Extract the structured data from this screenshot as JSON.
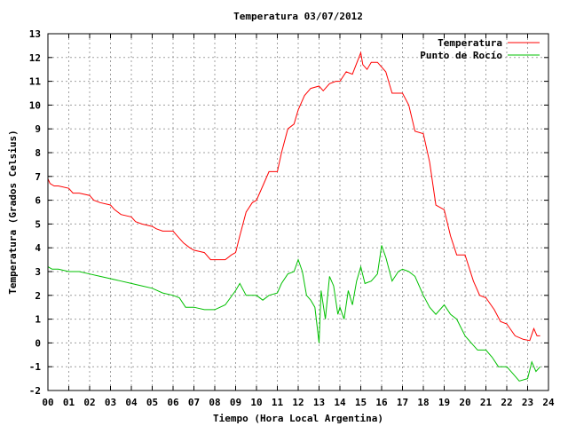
{
  "chart_data": {
    "type": "line",
    "title": "Temperatura 03/07/2012",
    "xlabel": "Tiempo (Hora Local Argentina)",
    "ylabel": "Temperatura (Grados Celsius)",
    "xlim": [
      0,
      24
    ],
    "ylim": [
      -2,
      13
    ],
    "xticks": [
      "00",
      "01",
      "02",
      "03",
      "04",
      "05",
      "06",
      "07",
      "08",
      "09",
      "10",
      "11",
      "12",
      "13",
      "14",
      "15",
      "16",
      "17",
      "18",
      "19",
      "20",
      "21",
      "22",
      "23",
      "24"
    ],
    "yticks": [
      -2,
      -1,
      0,
      1,
      2,
      3,
      4,
      5,
      6,
      7,
      8,
      9,
      10,
      11,
      12,
      13
    ],
    "grid": true,
    "legend_position": "top-right",
    "series": [
      {
        "name": "Temperatura",
        "color": "#ff0000",
        "x": [
          0,
          0.1,
          0.3,
          0.5,
          1.0,
          1.2,
          1.5,
          2.0,
          2.2,
          2.5,
          3.0,
          3.2,
          3.5,
          4.0,
          4.2,
          4.5,
          5.0,
          5.2,
          5.5,
          6.0,
          6.2,
          6.5,
          6.8,
          7.0,
          7.5,
          7.8,
          8.0,
          8.5,
          8.8,
          9.0,
          9.2,
          9.5,
          9.8,
          10.0,
          10.3,
          10.6,
          11.0,
          11.2,
          11.5,
          11.8,
          12.0,
          12.3,
          12.6,
          13.0,
          13.2,
          13.5,
          13.8,
          14.0,
          14.3,
          14.6,
          15.0,
          15.1,
          15.3,
          15.5,
          15.8,
          16.2,
          16.5,
          17.0,
          17.3,
          17.6,
          18.0,
          18.3,
          18.6,
          19.0,
          19.3,
          19.6,
          20.0,
          20.4,
          20.7,
          21.0,
          21.4,
          21.7,
          22.0,
          22.4,
          22.8,
          23.1,
          23.3,
          23.45,
          23.6
        ],
        "y": [
          6.9,
          6.7,
          6.6,
          6.6,
          6.5,
          6.3,
          6.3,
          6.2,
          6.0,
          5.9,
          5.8,
          5.6,
          5.4,
          5.3,
          5.1,
          5.0,
          4.9,
          4.8,
          4.7,
          4.7,
          4.5,
          4.2,
          4.0,
          3.9,
          3.8,
          3.5,
          3.5,
          3.5,
          3.7,
          3.8,
          4.5,
          5.5,
          5.9,
          6.0,
          6.6,
          7.2,
          7.2,
          8.0,
          9.0,
          9.2,
          9.8,
          10.4,
          10.7,
          10.8,
          10.6,
          10.9,
          11.0,
          11.0,
          11.4,
          11.3,
          12.2,
          11.7,
          11.5,
          11.8,
          11.8,
          11.4,
          10.5,
          10.5,
          10.0,
          8.9,
          8.8,
          7.6,
          5.8,
          5.6,
          4.5,
          3.7,
          3.7,
          2.6,
          2.0,
          1.9,
          1.4,
          0.9,
          0.8,
          0.3,
          0.15,
          0.1,
          0.6,
          0.3,
          0.3
        ]
      },
      {
        "name": "Punto de Rocío",
        "color": "#00c000",
        "x": [
          0,
          0.2,
          0.5,
          1.0,
          1.5,
          2.0,
          2.5,
          3.0,
          3.5,
          4.0,
          4.5,
          5.0,
          5.5,
          6.0,
          6.3,
          6.6,
          7.0,
          7.5,
          8.0,
          8.5,
          9.0,
          9.2,
          9.5,
          10.0,
          10.3,
          10.6,
          11.0,
          11.2,
          11.5,
          11.8,
          12.0,
          12.2,
          12.4,
          12.6,
          12.8,
          13.0,
          13.1,
          13.3,
          13.5,
          13.7,
          13.9,
          14.0,
          14.2,
          14.4,
          14.6,
          14.8,
          15.0,
          15.2,
          15.5,
          15.8,
          16.0,
          16.2,
          16.5,
          16.8,
          17.0,
          17.3,
          17.6,
          18.0,
          18.3,
          18.6,
          19.0,
          19.3,
          19.6,
          20.0,
          20.3,
          20.6,
          21.0,
          21.3,
          21.6,
          22.0,
          22.3,
          22.6,
          23.0,
          23.2,
          23.4,
          23.6
        ],
        "y": [
          3.2,
          3.1,
          3.1,
          3.0,
          3.0,
          2.9,
          2.8,
          2.7,
          2.6,
          2.5,
          2.4,
          2.3,
          2.1,
          2.0,
          1.9,
          1.5,
          1.5,
          1.4,
          1.4,
          1.6,
          2.2,
          2.5,
          2.0,
          2.0,
          1.8,
          2.0,
          2.1,
          2.5,
          2.9,
          3.0,
          3.5,
          3.0,
          2.0,
          1.8,
          1.5,
          0.0,
          2.2,
          1.0,
          2.8,
          2.4,
          1.2,
          1.5,
          1.0,
          2.2,
          1.6,
          2.6,
          3.2,
          2.5,
          2.6,
          2.9,
          4.1,
          3.6,
          2.6,
          3.0,
          3.1,
          3.0,
          2.8,
          2.0,
          1.5,
          1.2,
          1.6,
          1.2,
          1.0,
          0.3,
          0.0,
          -0.3,
          -0.3,
          -0.6,
          -1.0,
          -1.0,
          -1.3,
          -1.6,
          -1.5,
          -0.8,
          -1.2,
          -1.0
        ]
      }
    ]
  }
}
